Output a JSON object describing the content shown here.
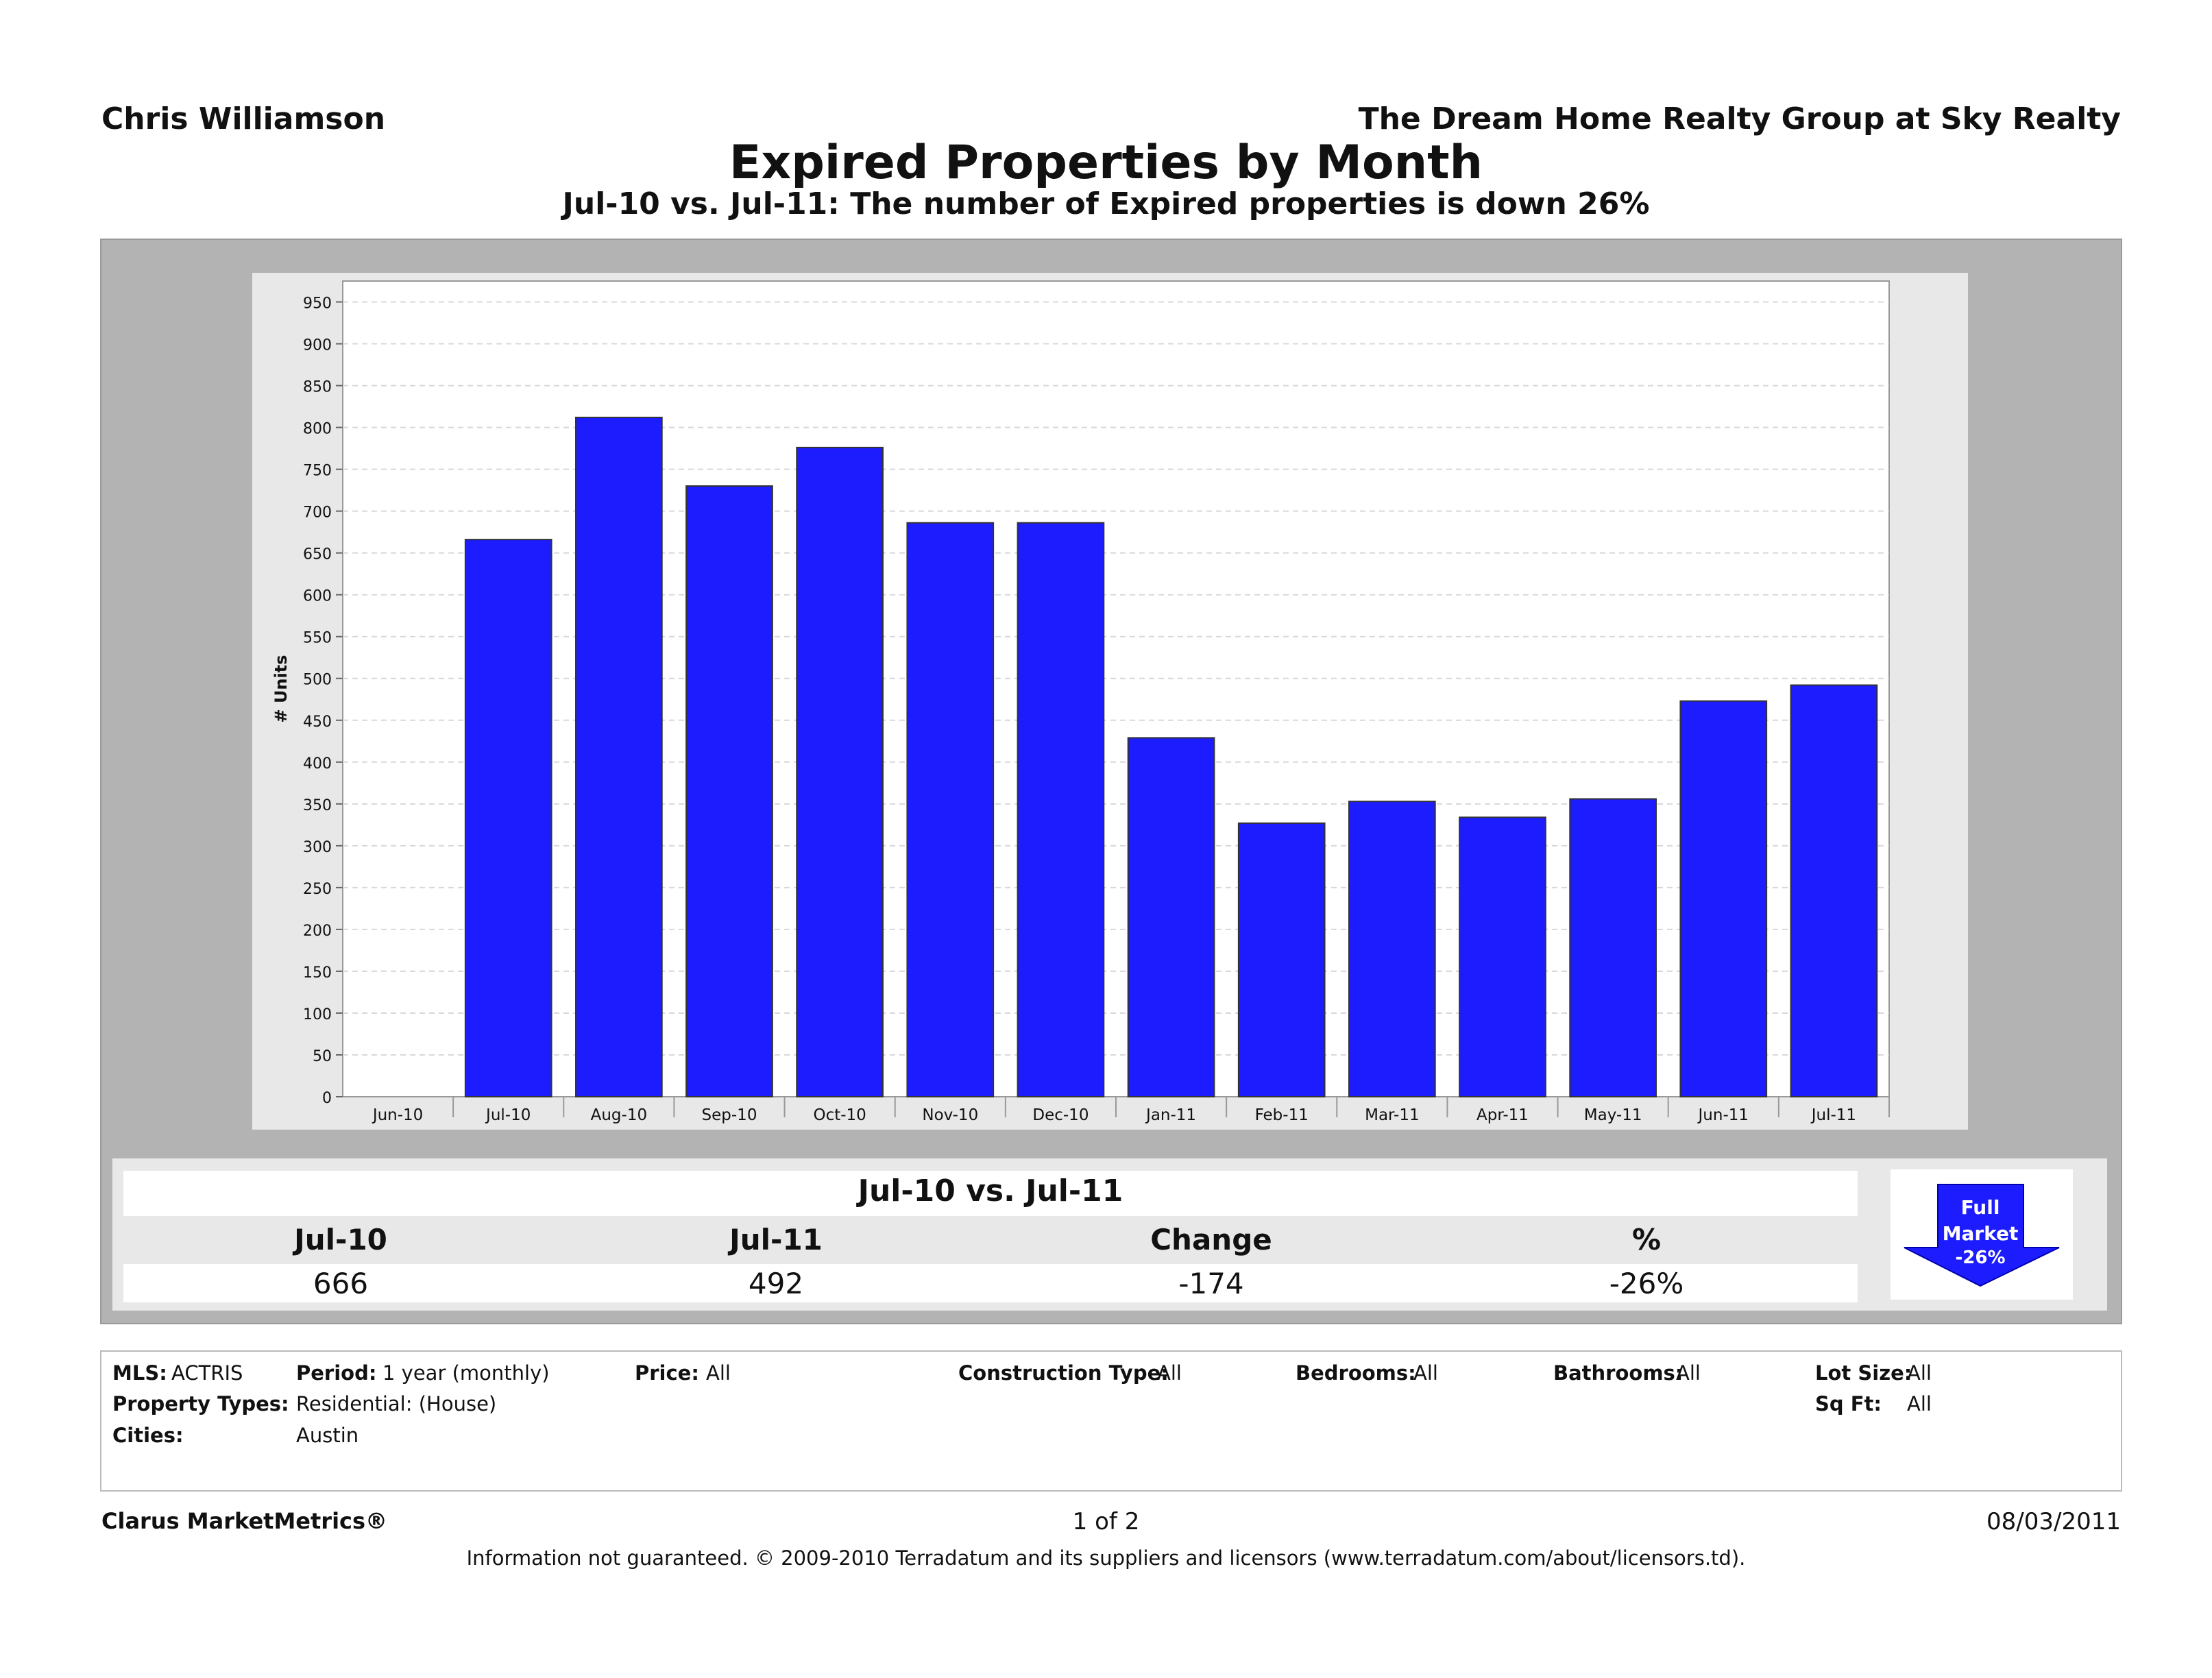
{
  "header": {
    "agent_name": "Chris Williamson",
    "company": "The Dream Home Realty Group at Sky Realty",
    "title": "Expired Properties by Month",
    "subtitle": "Jul-10 vs. Jul-11: The number of Expired properties is down 26%"
  },
  "chart_data": {
    "type": "bar",
    "title": "Expired Properties by Month",
    "xlabel": "",
    "ylabel": "# Units",
    "categories": [
      "Jun-10",
      "Jul-10",
      "Aug-10",
      "Sep-10",
      "Oct-10",
      "Nov-10",
      "Dec-10",
      "Jan-11",
      "Feb-11",
      "Mar-11",
      "Apr-11",
      "May-11",
      "Jun-11",
      "Jul-11"
    ],
    "values": [
      0,
      666,
      812,
      730,
      776,
      686,
      686,
      429,
      327,
      353,
      334,
      356,
      473,
      492
    ],
    "ylim": [
      0,
      975
    ],
    "yticks": [
      0,
      50,
      100,
      150,
      200,
      250,
      300,
      350,
      400,
      450,
      500,
      550,
      600,
      650,
      700,
      750,
      800,
      850,
      900,
      950
    ],
    "bar_color": "#1c1cff",
    "grid": true
  },
  "summary": {
    "title": "Jul-10 vs. Jul-11",
    "headers": [
      "Jul-10",
      "Jul-11",
      "Change",
      "%"
    ],
    "values": [
      "666",
      "492",
      "-174",
      "-26%"
    ],
    "badge": {
      "line1": "Full",
      "line2": "Market",
      "line3": "-26%",
      "direction": "down-arrow-icon"
    }
  },
  "filters": {
    "mls_label": "MLS:",
    "mls_value": "ACTRIS",
    "period_label": "Period:",
    "period_value": "1 year (monthly)",
    "price_label": "Price:",
    "price_value": "All",
    "construction_label": "Construction Type:",
    "construction_value": "All",
    "bedrooms_label": "Bedrooms:",
    "bedrooms_value": "All",
    "bathrooms_label": "Bathrooms:",
    "bathrooms_value": "All",
    "lot_label": "Lot Size:",
    "lot_value": "All",
    "property_types_label": "Property Types:",
    "property_types_value": "Residential: (House)",
    "sqft_label": "Sq Ft:",
    "sqft_value": "All",
    "cities_label": "Cities:",
    "cities_value": "Austin"
  },
  "footer": {
    "brand": "Clarus MarketMetrics®",
    "page": "1 of 2",
    "date": "08/03/2011",
    "disclaimer": "Information not guaranteed.  © 2009-2010 Terradatum and its suppliers and licensors (www.terradatum.com/about/licensors.td)."
  }
}
